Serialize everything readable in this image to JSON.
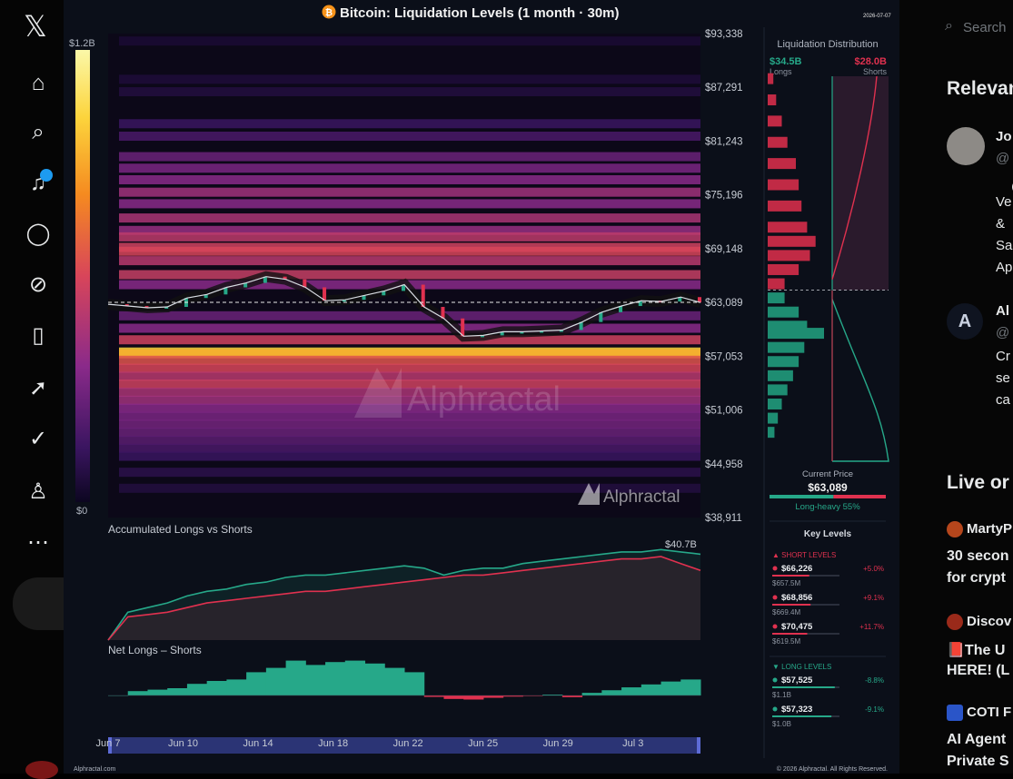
{
  "chart_title": "Bitcoin: Liquidation Levels (1 month · 30m)",
  "date_stamp": "2026-07-07",
  "watermark": "Alphractal",
  "footer_left": "Alphractal.com",
  "footer_right": "© 2026 Alphractal. All Rights Reserved.",
  "colorbar": {
    "max_label": "$1.2B",
    "min_label": "$0"
  },
  "colors": {
    "longs": "#26a889",
    "shorts": "#e0314f",
    "accent": "#f7931a",
    "background": "#0b0f19"
  },
  "chart_data": [
    {
      "type": "heatmap",
      "title": "Bitcoin: Liquidation Levels (1 month · 30m)",
      "y_tick_labels": [
        "$93,338",
        "$87,291",
        "$81,243",
        "$75,196",
        "$69,148",
        "$63,089",
        "$57,053",
        "$51,006",
        "$44,958",
        "$38,911"
      ],
      "x_tick_labels": [
        "Jun 7",
        "Jun 10",
        "Jun 14",
        "Jun 18",
        "Jun 22",
        "Jun 25",
        "Jun 29",
        "Jul 3"
      ],
      "ylim": [
        38911,
        93338
      ],
      "current_price": 63089,
      "price_series": [
        {
          "date": "Jun 7",
          "price": 62900
        },
        {
          "date": "Jun 8",
          "price": 62700
        },
        {
          "date": "Jun 9",
          "price": 62500
        },
        {
          "date": "Jun 10",
          "price": 62600
        },
        {
          "date": "Jun 11",
          "price": 63600
        },
        {
          "date": "Jun 12",
          "price": 64000
        },
        {
          "date": "Jun 13",
          "price": 64800
        },
        {
          "date": "Jun 14",
          "price": 65300
        },
        {
          "date": "Jun 15",
          "price": 66000
        },
        {
          "date": "Jun 16",
          "price": 65700
        },
        {
          "date": "Jun 17",
          "price": 64800
        },
        {
          "date": "Jun 18",
          "price": 63300
        },
        {
          "date": "Jun 19",
          "price": 63400
        },
        {
          "date": "Jun 20",
          "price": 63900
        },
        {
          "date": "Jun 21",
          "price": 64400
        },
        {
          "date": "Jun 22",
          "price": 65100
        },
        {
          "date": "Jun 23",
          "price": 62600
        },
        {
          "date": "Jun 24",
          "price": 61300
        },
        {
          "date": "Jun 25",
          "price": 59300
        },
        {
          "date": "Jun 26",
          "price": 59400
        },
        {
          "date": "Jun 27",
          "price": 59800
        },
        {
          "date": "Jun 28",
          "price": 59800
        },
        {
          "date": "Jun 29",
          "price": 59900
        },
        {
          "date": "Jun 30",
          "price": 60000
        },
        {
          "date": "Jul 1",
          "price": 60900
        },
        {
          "date": "Jul 2",
          "price": 62000
        },
        {
          "date": "Jul 3",
          "price": 62700
        },
        {
          "date": "Jul 4",
          "price": 63300
        },
        {
          "date": "Jul 5",
          "price": 63200
        },
        {
          "date": "Jul 6",
          "price": 63700
        },
        {
          "date": "Jul 7",
          "price": 63089
        }
      ],
      "liquidation_bands": [
        {
          "price": 92500,
          "intensity": 0.1
        },
        {
          "price": 88200,
          "intensity": 0.12
        },
        {
          "price": 86800,
          "intensity": 0.15
        },
        {
          "price": 83200,
          "intensity": 0.3
        },
        {
          "price": 81800,
          "intensity": 0.35
        },
        {
          "price": 79500,
          "intensity": 0.45
        },
        {
          "price": 78200,
          "intensity": 0.5
        },
        {
          "price": 76900,
          "intensity": 0.55
        },
        {
          "price": 75500,
          "intensity": 0.6
        },
        {
          "price": 74200,
          "intensity": 0.55
        },
        {
          "price": 72600,
          "intensity": 0.62
        },
        {
          "price": 71200,
          "intensity": 0.58
        },
        {
          "price": 70475,
          "intensity": 0.66
        },
        {
          "price": 69300,
          "intensity": 0.7
        },
        {
          "price": 68856,
          "intensity": 0.72
        },
        {
          "price": 67800,
          "intensity": 0.65
        },
        {
          "price": 66226,
          "intensity": 0.68
        },
        {
          "price": 65100,
          "intensity": 0.55
        },
        {
          "price": 61600,
          "intensity": 0.45
        },
        {
          "price": 60200,
          "intensity": 0.55
        },
        {
          "price": 58900,
          "intensity": 0.7
        },
        {
          "price": 57525,
          "intensity": 0.95
        },
        {
          "price": 57323,
          "intensity": 0.9
        },
        {
          "price": 56600,
          "intensity": 0.75
        },
        {
          "price": 55700,
          "intensity": 0.72
        },
        {
          "price": 54800,
          "intensity": 0.65
        },
        {
          "price": 53900,
          "intensity": 0.7
        },
        {
          "price": 53000,
          "intensity": 0.62
        },
        {
          "price": 52100,
          "intensity": 0.6
        },
        {
          "price": 51200,
          "intensity": 0.55
        },
        {
          "price": 50300,
          "intensity": 0.5
        },
        {
          "price": 49400,
          "intensity": 0.48
        },
        {
          "price": 48500,
          "intensity": 0.45
        },
        {
          "price": 47600,
          "intensity": 0.4
        },
        {
          "price": 46700,
          "intensity": 0.35
        },
        {
          "price": 45800,
          "intensity": 0.3
        },
        {
          "price": 44000,
          "intensity": 0.2
        },
        {
          "price": 42200,
          "intensity": 0.15
        }
      ]
    },
    {
      "type": "line",
      "title": "Accumulated Longs vs Shorts",
      "x_tick_labels": [
        "Jun 7",
        "Jun 10",
        "Jun 14",
        "Jun 18",
        "Jun 22",
        "Jun 25",
        "Jun 29",
        "Jul 3"
      ],
      "end_label": "$40.7B",
      "ylim": [
        0,
        45
      ],
      "series": [
        {
          "name": "Longs",
          "color": "#26a889",
          "values": [
            0,
            12,
            14,
            16,
            19,
            21,
            22,
            24,
            25,
            27,
            28,
            28,
            29,
            30,
            31,
            32,
            31,
            28,
            30,
            31,
            31,
            33,
            34,
            35,
            36,
            37,
            38,
            38,
            39,
            38,
            37
          ]
        },
        {
          "name": "Shorts",
          "color": "#e0314f",
          "values": [
            0,
            10,
            11,
            12,
            14,
            16,
            17,
            18,
            19,
            20,
            21,
            21,
            22,
            23,
            24,
            25,
            26,
            27,
            28,
            28,
            29,
            30,
            31,
            32,
            33,
            34,
            35,
            35,
            36,
            33,
            30
          ]
        }
      ]
    },
    {
      "type": "area",
      "title": "Net Longs – Shorts",
      "x_tick_labels": [
        "Jun 7",
        "Jun 10",
        "Jun 14",
        "Jun 18",
        "Jun 22",
        "Jun 25",
        "Jun 29",
        "Jul 3"
      ],
      "values": [
        0,
        1.5,
        2.0,
        2.5,
        4.0,
        5.0,
        5.5,
        8.0,
        9.5,
        12.0,
        10.5,
        11.5,
        12.0,
        11.0,
        9.5,
        8.0,
        -0.5,
        -1.2,
        -1.4,
        -0.8,
        -0.4,
        -0.2,
        0.3,
        -0.6,
        0.9,
        1.8,
        2.8,
        3.8,
        4.8,
        5.5,
        6.0
      ],
      "colors": {
        "positive": "#26a889",
        "negative": "#e0314f"
      }
    },
    {
      "type": "bar",
      "title": "Liquidation Distribution",
      "summary": {
        "longs_total": "$34.5B",
        "longs_label": "Longs",
        "shorts_total": "$28.0B",
        "shorts_label": "Shorts"
      },
      "current_price_label": "Current Price",
      "current_price": "$63,089",
      "bias_label": "Long-heavy 55%",
      "bias_long_fraction": 0.55,
      "short_profile": [
        {
          "price": 93000,
          "value": 0.1
        },
        {
          "price": 90000,
          "value": 0.15
        },
        {
          "price": 87000,
          "value": 0.25
        },
        {
          "price": 84000,
          "value": 0.35
        },
        {
          "price": 81000,
          "value": 0.5
        },
        {
          "price": 78000,
          "value": 0.55
        },
        {
          "price": 75000,
          "value": 0.6
        },
        {
          "price": 72000,
          "value": 0.7
        },
        {
          "price": 70000,
          "value": 0.85
        },
        {
          "price": 68000,
          "value": 0.75
        },
        {
          "price": 66000,
          "value": 0.55
        },
        {
          "price": 64000,
          "value": 0.3
        }
      ],
      "long_profile": [
        {
          "price": 62000,
          "value": 0.3
        },
        {
          "price": 60000,
          "value": 0.55
        },
        {
          "price": 58000,
          "value": 0.7
        },
        {
          "price": 57000,
          "value": 1.0
        },
        {
          "price": 55000,
          "value": 0.65
        },
        {
          "price": 53000,
          "value": 0.55
        },
        {
          "price": 51000,
          "value": 0.45
        },
        {
          "price": 49000,
          "value": 0.35
        },
        {
          "price": 47000,
          "value": 0.25
        },
        {
          "price": 45000,
          "value": 0.18
        },
        {
          "price": 43000,
          "value": 0.12
        }
      ]
    }
  ],
  "key_levels": {
    "title": "Key Levels",
    "short_header": "▲ SHORT LEVELS",
    "long_header": "▼ LONG LEVELS",
    "shorts": [
      {
        "price": "$66,226",
        "pct": "+5.0%",
        "amount": "$657.5M",
        "fill": 0.55
      },
      {
        "price": "$68,856",
        "pct": "+9.1%",
        "amount": "$669.4M",
        "fill": 0.57
      },
      {
        "price": "$70,475",
        "pct": "+11.7%",
        "amount": "$619.5M",
        "fill": 0.52
      }
    ],
    "longs": [
      {
        "price": "$57,525",
        "pct": "-8.8%",
        "amount": "$1.1B",
        "fill": 0.93
      },
      {
        "price": "$57,323",
        "pct": "-9.1%",
        "amount": "$1.0B",
        "fill": 0.88
      }
    ]
  },
  "right_column": {
    "search_placeholder": "Search",
    "relevant_heading": "Relevan",
    "profile1_name": "Jo",
    "profile1_handle": "@",
    "profile1_bio": [
      "Ve",
      "&",
      "Sa",
      "Ap"
    ],
    "profile2_name": "Al",
    "profile2_handle": "@",
    "profile2_bio": [
      "Cr",
      "se",
      "ca"
    ],
    "live_heading": "Live or",
    "items": [
      {
        "name": "MartyP",
        "text": [
          "30 secon",
          "for crypt"
        ]
      },
      {
        "name": "Discov",
        "text": [
          "📕The U",
          "HERE! (L"
        ]
      },
      {
        "name": "COTI F",
        "text": [
          "AI Agent",
          "Private S"
        ]
      }
    ]
  }
}
